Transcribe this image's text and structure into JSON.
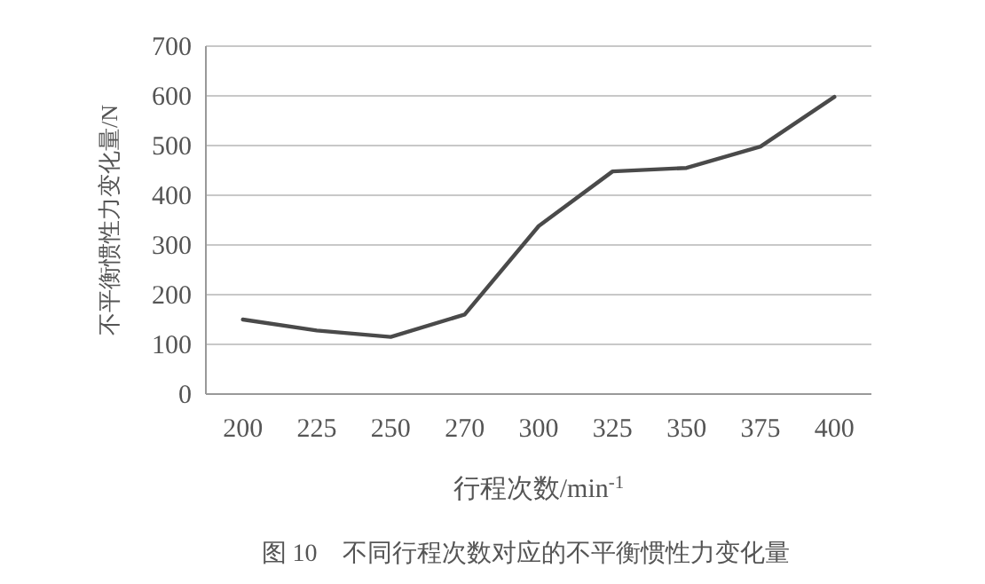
{
  "chart_data": {
    "type": "line",
    "categories": [
      "200",
      "225",
      "250",
      "270",
      "300",
      "325",
      "350",
      "375",
      "400"
    ],
    "series": [
      {
        "color": "#4a4a4a",
        "values": [
          150,
          128,
          115,
          160,
          338,
          448,
          455,
          498,
          598
        ]
      }
    ],
    "xlabel": "行程次数/min$^{-1}$",
    "ylabel": "不平衡惯性力变化量/N",
    "ylim": [
      0,
      700
    ],
    "yticks": [
      0,
      100,
      200,
      300,
      400,
      500,
      600,
      700
    ],
    "grid": "y",
    "marker": "none",
    "line_style": "solid",
    "annotations": [
      "图 10　不同行程次数对应的不平衡惯性力变化量"
    ]
  }
}
